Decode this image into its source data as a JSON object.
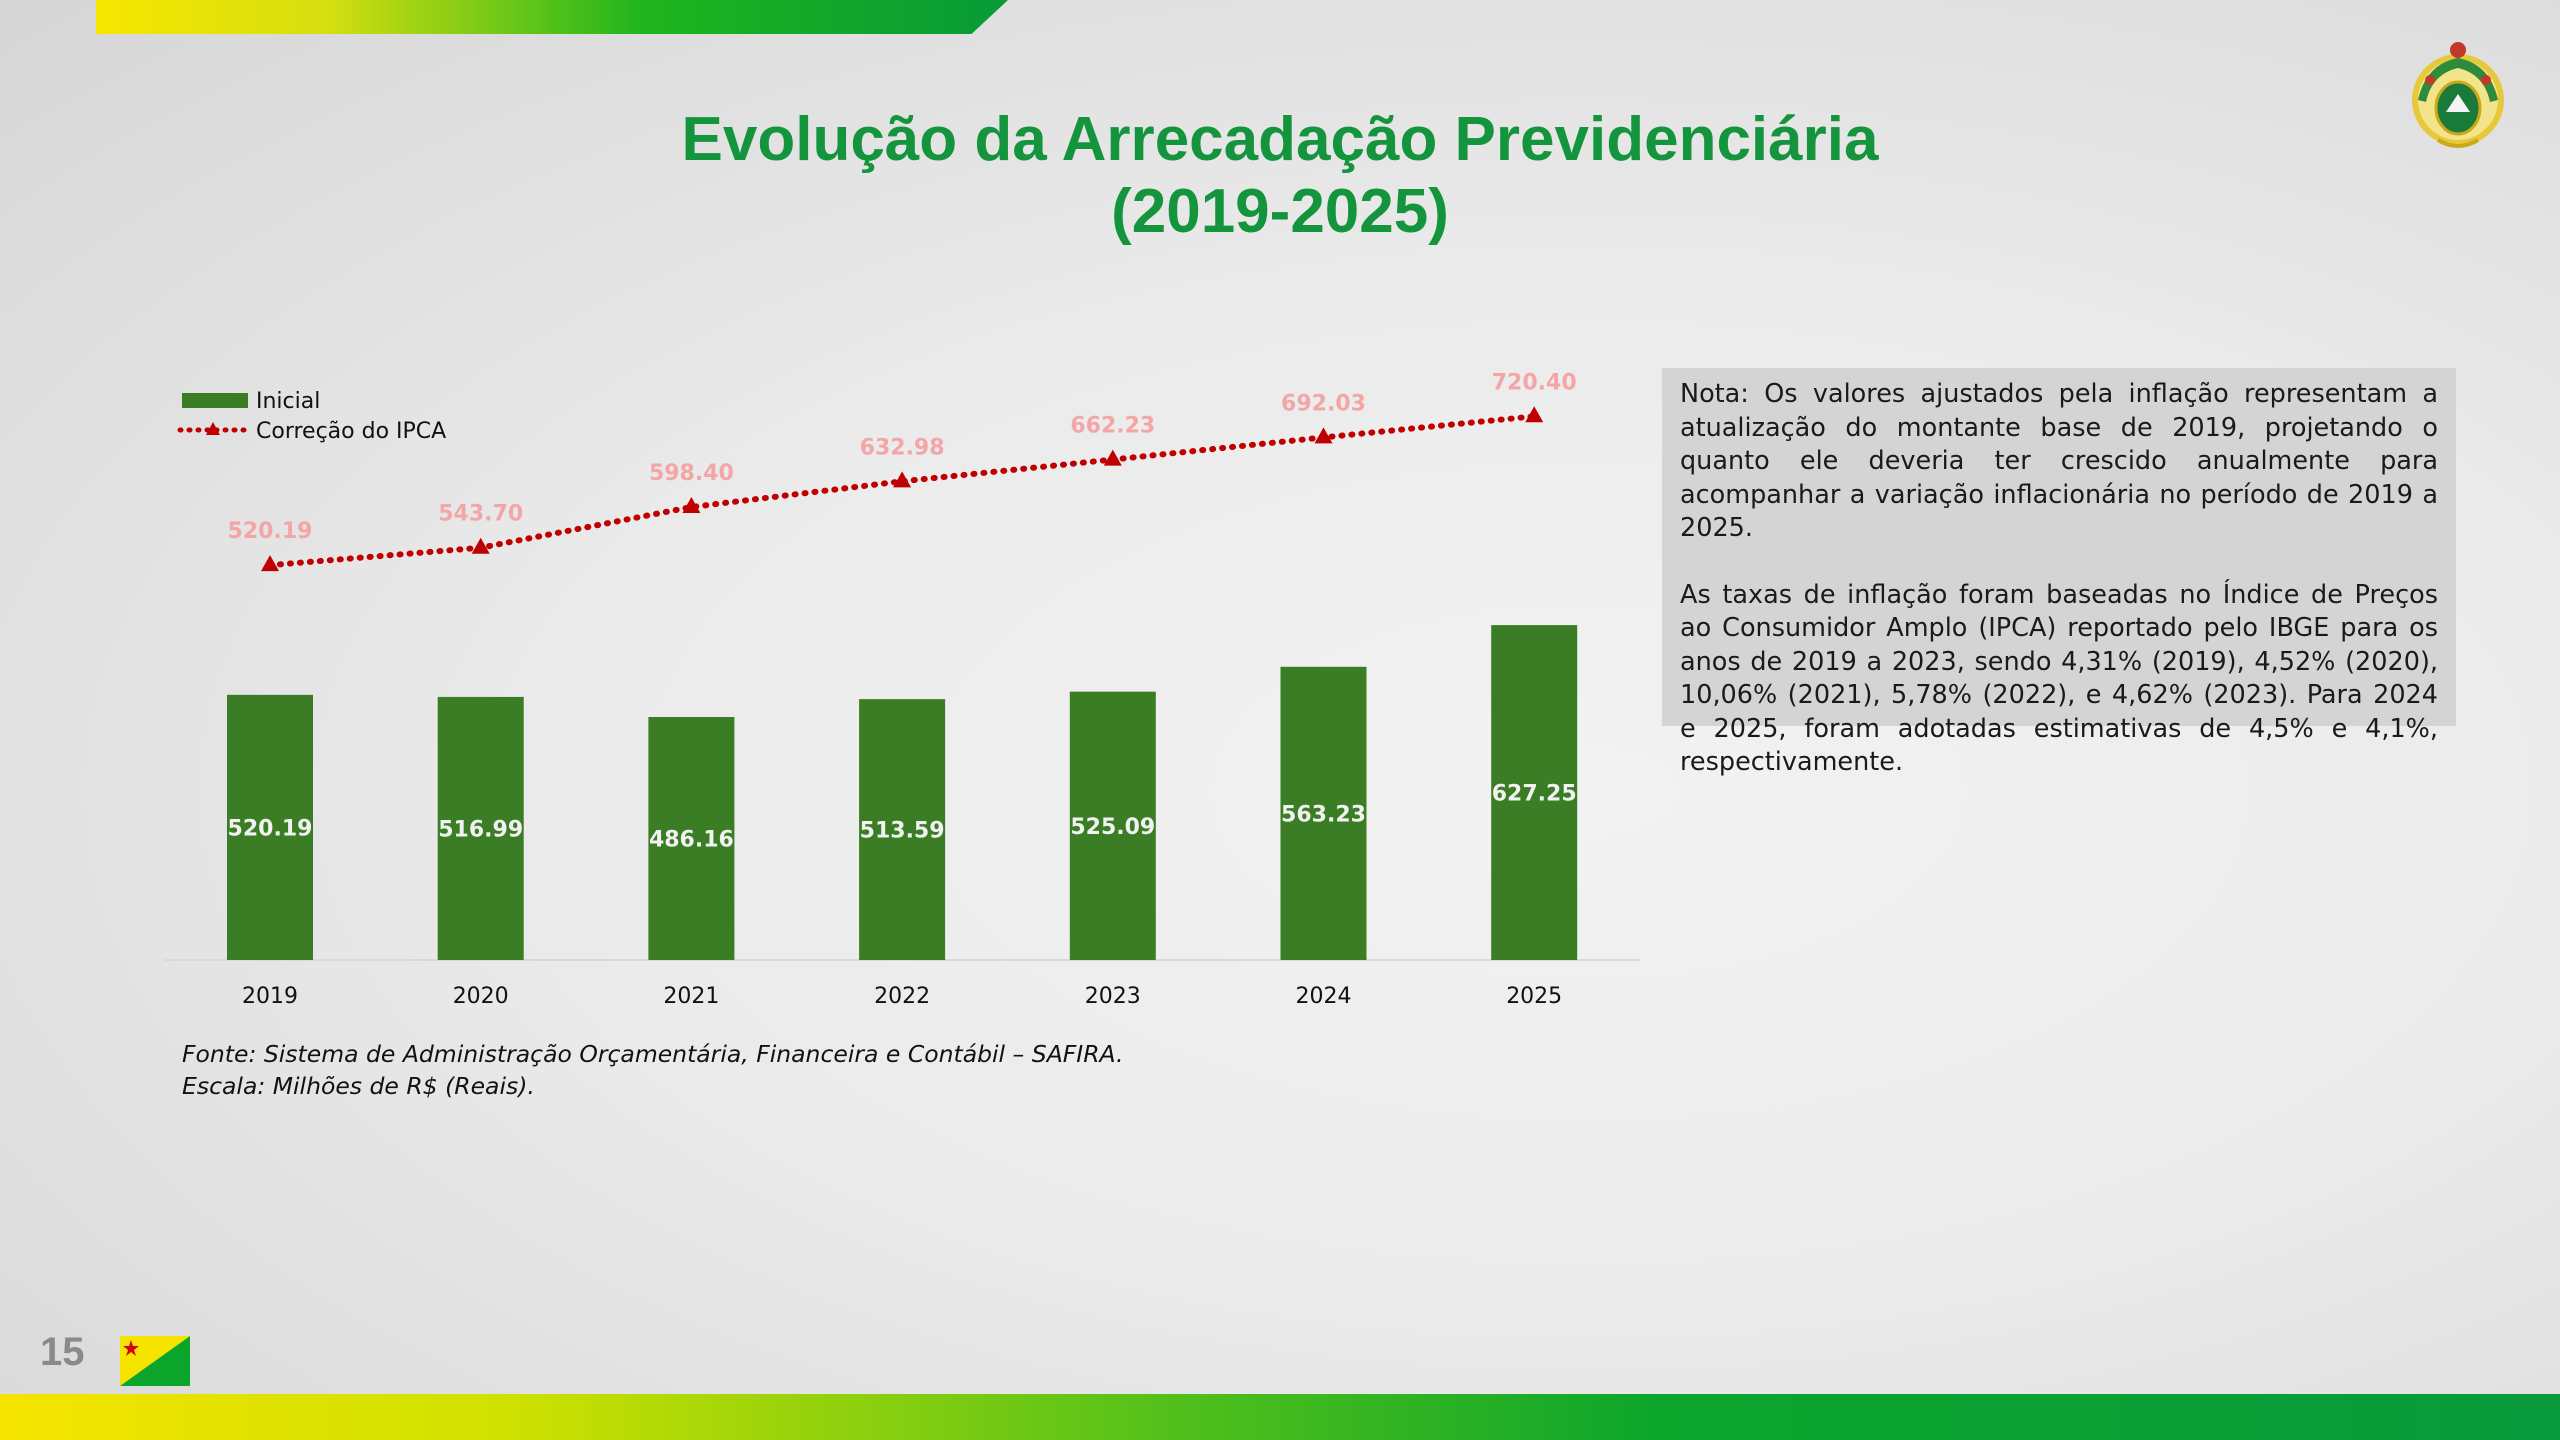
{
  "title_line1": "Evolução da Arrecadação Previdenciária",
  "title_line2": "(2019-2025)",
  "note": {
    "paragraph1": "Nota: Os valores ajustados pela inflação representam a atualização do montante base de 2019, projetando o quanto ele deveria ter crescido anualmente para acompanhar a variação inflacionária no período de 2019 a 2025.",
    "paragraph2": "As taxas de inflação foram baseadas no Índice de Preços ao Consumidor Amplo (IPCA) reportado pelo IBGE para os anos de 2019 a 2023, sendo 4,31% (2019), 4,52% (2020), 10,06% (2021), 5,78% (2022), e 4,62% (2023). Para 2024 e 2025, foram adotadas estimativas de 4,5% e 4,1%, respectivamente."
  },
  "source_line1": "Fonte: Sistema de Administração Orçamentária, Financeira e Contábil – SAFIRA.",
  "source_line2": "Escala: Milhões de R$ (Reais).",
  "page_number": "15",
  "colors": {
    "title": "#14953d",
    "bar": "#3a7d24",
    "line": "#c00000",
    "line_label": "#f4a6a6"
  },
  "chart_data": {
    "type": "bar",
    "title": "Evolução da Arrecadação Previdenciária (2019-2025)",
    "categories": [
      "2019",
      "2020",
      "2021",
      "2022",
      "2023",
      "2024",
      "2025"
    ],
    "series": [
      {
        "name": "Inicial",
        "type": "bar",
        "values": [
          520.19,
          516.99,
          486.16,
          513.59,
          525.09,
          563.23,
          627.25
        ]
      },
      {
        "name": "Correção do IPCA",
        "type": "line",
        "values": [
          520.19,
          543.7,
          598.4,
          632.98,
          662.23,
          692.03,
          720.4
        ]
      }
    ],
    "labels": {
      "Inicial": [
        "520.19",
        "516.99",
        "486.16",
        "513.59",
        "525.09",
        "563.23",
        "627.25"
      ],
      "Correção do IPCA": [
        "520.19",
        "543.70",
        "598.40",
        "632.98",
        "662.23",
        "692.03",
        "720.40"
      ]
    },
    "xlabel": "",
    "ylabel": "",
    "legend": "top-left",
    "grid": false
  }
}
